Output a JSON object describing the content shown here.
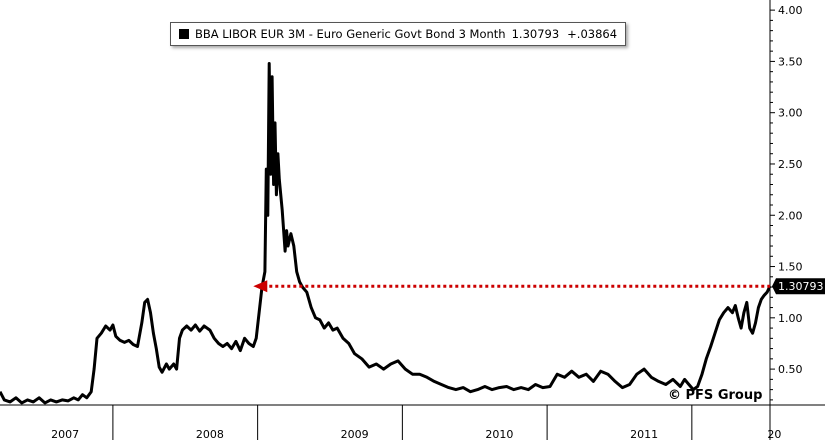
{
  "legend": {
    "series_label": "BBA LIBOR EUR 3M - Euro Generic Govt Bond 3 Month",
    "last_value": "1.30793",
    "change": "+.03864"
  },
  "watermark": "© PFS Group",
  "last_value_badge": "1.30793",
  "colors": {
    "line": "#000000",
    "reference_arrow": "#cc0000",
    "badge_bg": "#000000",
    "background": "#ffffff"
  },
  "chart_data": {
    "type": "line",
    "title": "",
    "xlabel": "",
    "ylabel": "",
    "xlim": [
      2006.55,
      2011.87
    ],
    "ylim": [
      0.15,
      4.05
    ],
    "y_axis_side": "right",
    "yticks": [
      0.5,
      1.0,
      1.5,
      2.0,
      2.5,
      3.0,
      3.5,
      4.0
    ],
    "ytick_labels": [
      "0.50",
      "1.00",
      "1.50",
      "2.00",
      "2.50",
      "3.00",
      "3.50",
      "4.00"
    ],
    "x_year_labels": [
      {
        "label": "2007",
        "x": 2007.0
      },
      {
        "label": "2008",
        "x": 2008.0
      },
      {
        "label": "2009",
        "x": 2009.0
      },
      {
        "label": "2010",
        "x": 2010.0
      },
      {
        "label": "2011",
        "x": 2011.0
      },
      {
        "label": "20",
        "x": 2011.9
      }
    ],
    "x_separators": [
      2007.33,
      2008.33,
      2009.33,
      2010.33,
      2011.33
    ],
    "grid": false,
    "legend_position": "top-center",
    "reference_line": {
      "y": 1.30793,
      "from_x": 2008.3,
      "to_x": 2011.87,
      "style": "dotted",
      "arrow": "left"
    },
    "series": [
      {
        "name": "BBA LIBOR EUR 3M - Euro Generic Govt Bond 3 Month",
        "points": [
          [
            2006.55,
            0.28
          ],
          [
            2006.58,
            0.2
          ],
          [
            2006.62,
            0.18
          ],
          [
            2006.66,
            0.22
          ],
          [
            2006.7,
            0.17
          ],
          [
            2006.74,
            0.2
          ],
          [
            2006.78,
            0.18
          ],
          [
            2006.82,
            0.22
          ],
          [
            2006.86,
            0.17
          ],
          [
            2006.9,
            0.2
          ],
          [
            2006.94,
            0.18
          ],
          [
            2006.98,
            0.2
          ],
          [
            2007.02,
            0.19
          ],
          [
            2007.06,
            0.22
          ],
          [
            2007.09,
            0.2
          ],
          [
            2007.12,
            0.25
          ],
          [
            2007.15,
            0.22
          ],
          [
            2007.18,
            0.28
          ],
          [
            2007.2,
            0.5
          ],
          [
            2007.22,
            0.8
          ],
          [
            2007.25,
            0.85
          ],
          [
            2007.28,
            0.92
          ],
          [
            2007.31,
            0.88
          ],
          [
            2007.33,
            0.93
          ],
          [
            2007.35,
            0.82
          ],
          [
            2007.38,
            0.78
          ],
          [
            2007.41,
            0.76
          ],
          [
            2007.44,
            0.78
          ],
          [
            2007.47,
            0.74
          ],
          [
            2007.5,
            0.72
          ],
          [
            2007.53,
            0.95
          ],
          [
            2007.55,
            1.15
          ],
          [
            2007.57,
            1.18
          ],
          [
            2007.59,
            1.05
          ],
          [
            2007.61,
            0.85
          ],
          [
            2007.63,
            0.7
          ],
          [
            2007.65,
            0.52
          ],
          [
            2007.67,
            0.47
          ],
          [
            2007.7,
            0.55
          ],
          [
            2007.72,
            0.5
          ],
          [
            2007.75,
            0.55
          ],
          [
            2007.77,
            0.5
          ],
          [
            2007.79,
            0.8
          ],
          [
            2007.81,
            0.88
          ],
          [
            2007.84,
            0.92
          ],
          [
            2007.87,
            0.88
          ],
          [
            2007.9,
            0.93
          ],
          [
            2007.93,
            0.87
          ],
          [
            2007.96,
            0.92
          ],
          [
            2008.0,
            0.88
          ],
          [
            2008.03,
            0.8
          ],
          [
            2008.06,
            0.75
          ],
          [
            2008.09,
            0.72
          ],
          [
            2008.12,
            0.75
          ],
          [
            2008.15,
            0.7
          ],
          [
            2008.18,
            0.77
          ],
          [
            2008.21,
            0.68
          ],
          [
            2008.24,
            0.8
          ],
          [
            2008.27,
            0.75
          ],
          [
            2008.3,
            0.72
          ],
          [
            2008.32,
            0.8
          ],
          [
            2008.34,
            1.05
          ],
          [
            2008.36,
            1.3
          ],
          [
            2008.38,
            1.45
          ],
          [
            2008.39,
            2.45
          ],
          [
            2008.4,
            2.0
          ],
          [
            2008.41,
            3.48
          ],
          [
            2008.42,
            2.4
          ],
          [
            2008.43,
            3.35
          ],
          [
            2008.44,
            2.3
          ],
          [
            2008.45,
            2.9
          ],
          [
            2008.46,
            2.2
          ],
          [
            2008.47,
            2.6
          ],
          [
            2008.48,
            2.35
          ],
          [
            2008.5,
            2.05
          ],
          [
            2008.52,
            1.65
          ],
          [
            2008.53,
            1.85
          ],
          [
            2008.54,
            1.7
          ],
          [
            2008.56,
            1.82
          ],
          [
            2008.58,
            1.7
          ],
          [
            2008.6,
            1.45
          ],
          [
            2008.62,
            1.35
          ],
          [
            2008.64,
            1.3
          ],
          [
            2008.67,
            1.25
          ],
          [
            2008.7,
            1.1
          ],
          [
            2008.73,
            1.0
          ],
          [
            2008.76,
            0.98
          ],
          [
            2008.79,
            0.9
          ],
          [
            2008.82,
            0.95
          ],
          [
            2008.85,
            0.88
          ],
          [
            2008.88,
            0.9
          ],
          [
            2008.92,
            0.8
          ],
          [
            2008.96,
            0.75
          ],
          [
            2009.0,
            0.65
          ],
          [
            2009.05,
            0.6
          ],
          [
            2009.1,
            0.52
          ],
          [
            2009.15,
            0.55
          ],
          [
            2009.2,
            0.5
          ],
          [
            2009.25,
            0.55
          ],
          [
            2009.3,
            0.58
          ],
          [
            2009.35,
            0.5
          ],
          [
            2009.4,
            0.45
          ],
          [
            2009.45,
            0.45
          ],
          [
            2009.5,
            0.42
          ],
          [
            2009.55,
            0.38
          ],
          [
            2009.6,
            0.35
          ],
          [
            2009.65,
            0.32
          ],
          [
            2009.7,
            0.3
          ],
          [
            2009.75,
            0.32
          ],
          [
            2009.8,
            0.28
          ],
          [
            2009.85,
            0.3
          ],
          [
            2009.9,
            0.33
          ],
          [
            2009.95,
            0.3
          ],
          [
            2010.0,
            0.32
          ],
          [
            2010.05,
            0.33
          ],
          [
            2010.1,
            0.3
          ],
          [
            2010.15,
            0.32
          ],
          [
            2010.2,
            0.3
          ],
          [
            2010.25,
            0.35
          ],
          [
            2010.3,
            0.32
          ],
          [
            2010.35,
            0.33
          ],
          [
            2010.4,
            0.45
          ],
          [
            2010.45,
            0.42
          ],
          [
            2010.5,
            0.48
          ],
          [
            2010.55,
            0.42
          ],
          [
            2010.6,
            0.45
          ],
          [
            2010.65,
            0.38
          ],
          [
            2010.7,
            0.48
          ],
          [
            2010.75,
            0.45
          ],
          [
            2010.8,
            0.38
          ],
          [
            2010.85,
            0.32
          ],
          [
            2010.9,
            0.35
          ],
          [
            2010.95,
            0.45
          ],
          [
            2011.0,
            0.5
          ],
          [
            2011.05,
            0.42
          ],
          [
            2011.1,
            0.38
          ],
          [
            2011.15,
            0.35
          ],
          [
            2011.2,
            0.4
          ],
          [
            2011.25,
            0.33
          ],
          [
            2011.28,
            0.4
          ],
          [
            2011.31,
            0.35
          ],
          [
            2011.34,
            0.3
          ],
          [
            2011.37,
            0.33
          ],
          [
            2011.4,
            0.45
          ],
          [
            2011.43,
            0.6
          ],
          [
            2011.46,
            0.72
          ],
          [
            2011.49,
            0.85
          ],
          [
            2011.52,
            0.98
          ],
          [
            2011.55,
            1.05
          ],
          [
            2011.58,
            1.1
          ],
          [
            2011.61,
            1.05
          ],
          [
            2011.63,
            1.12
          ],
          [
            2011.65,
            1.0
          ],
          [
            2011.67,
            0.9
          ],
          [
            2011.69,
            1.05
          ],
          [
            2011.71,
            1.15
          ],
          [
            2011.73,
            0.9
          ],
          [
            2011.75,
            0.85
          ],
          [
            2011.77,
            0.95
          ],
          [
            2011.79,
            1.1
          ],
          [
            2011.81,
            1.18
          ],
          [
            2011.83,
            1.22
          ],
          [
            2011.85,
            1.25
          ],
          [
            2011.87,
            1.31
          ]
        ]
      }
    ]
  }
}
